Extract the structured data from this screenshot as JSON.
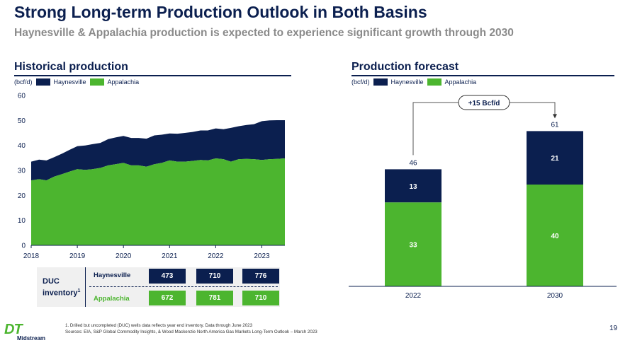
{
  "title": "Strong Long-term Production Outlook in Both Basins",
  "subtitle": "Haynesville & Appalachia production is expected to experience significant growth through 2030",
  "colors": {
    "navy": "#0b1f4f",
    "green": "#4cb52f",
    "gray": "#8a8a8a"
  },
  "chart_data": [
    {
      "type": "area",
      "title": "Historical production",
      "units": "(bcf/d)",
      "legend": [
        "Haynesville",
        "Appalachia"
      ],
      "ylim": [
        0,
        60
      ],
      "yticks": [
        "0",
        "10",
        "20",
        "30",
        "40",
        "50",
        "60"
      ],
      "xticks": [
        "2018",
        "2019",
        "2020",
        "2021",
        "2022",
        "2023"
      ],
      "x": [
        2018.0,
        2018.17,
        2018.33,
        2018.5,
        2018.67,
        2018.83,
        2019.0,
        2019.17,
        2019.33,
        2019.5,
        2019.67,
        2019.83,
        2020.0,
        2020.17,
        2020.33,
        2020.5,
        2020.67,
        2020.83,
        2021.0,
        2021.17,
        2021.33,
        2021.5,
        2021.67,
        2021.83,
        2022.0,
        2022.17,
        2022.33,
        2022.5,
        2022.67,
        2022.83,
        2023.0,
        2023.17,
        2023.33,
        2023.5
      ],
      "series": [
        {
          "name": "Appalachia",
          "values": [
            26,
            26.5,
            26,
            27.5,
            28.5,
            29.5,
            30.5,
            30.2,
            30.5,
            31,
            32,
            32.5,
            33,
            32,
            32,
            31.5,
            32.5,
            33,
            34,
            33.5,
            33.5,
            33.8,
            34.2,
            34,
            34.8,
            34.5,
            33.5,
            34.5,
            34.6,
            34.5,
            34.2,
            34.5,
            34.6,
            34.8
          ]
        },
        {
          "name": "Haynesville",
          "values": [
            7.5,
            7.8,
            8,
            7.8,
            8.2,
            8.7,
            9.2,
            9.8,
            10,
            10,
            10.5,
            10.7,
            10.8,
            11,
            11,
            11.2,
            11.5,
            11.3,
            10.8,
            11.2,
            11.5,
            11.6,
            11.8,
            12,
            12,
            12,
            13.5,
            13.2,
            13.6,
            14,
            15.5,
            15.5,
            15.5,
            15.3
          ]
        }
      ]
    },
    {
      "type": "bar",
      "title": "Production forecast",
      "units": "(bcf/d)",
      "legend": [
        "Haynesville",
        "Appalachia"
      ],
      "categories": [
        "2022",
        "2030"
      ],
      "ylim": [
        0,
        75
      ],
      "series": [
        {
          "name": "Appalachia",
          "values": [
            33,
            40
          ]
        },
        {
          "name": "Haynesville",
          "values": [
            13,
            21
          ]
        }
      ],
      "totals": [
        "46",
        "61"
      ],
      "annotation": "+15 Bcf/d"
    }
  ],
  "duc": {
    "label_line1": "DUC",
    "label_line2": "inventory",
    "label_sup": "1",
    "rows": [
      {
        "basin": "Haynesville",
        "values": [
          "473",
          "710",
          "776"
        ]
      },
      {
        "basin": "Appalachia",
        "values": [
          "672",
          "781",
          "710"
        ]
      }
    ]
  },
  "footnotes": {
    "line1": "1. Drilled but uncompleted (DUC) wells data reflects year end inventory. Data through June 2023",
    "line2": "Sources: EIA, S&P Global Commodity Insights, & Wood Mackenzie North America Gas Markets Long-Term Outlook – March 2023"
  },
  "logo": {
    "mark": "DT",
    "text": "Midstream"
  },
  "page_number": "19"
}
